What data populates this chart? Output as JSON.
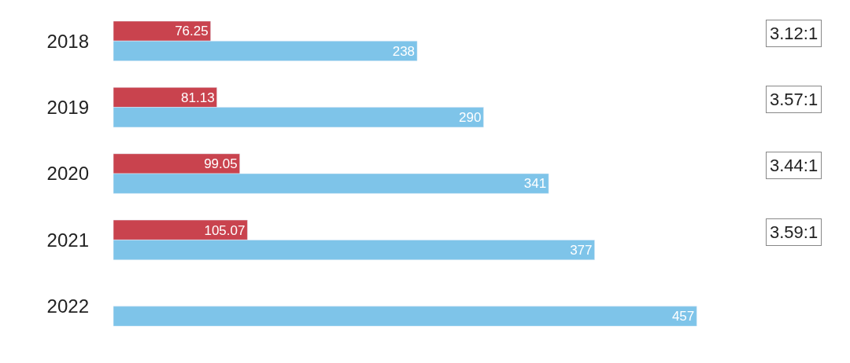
{
  "chart_data": {
    "type": "bar",
    "orientation": "horizontal",
    "categories": [
      "2018",
      "2019",
      "2020",
      "2021",
      "2022"
    ],
    "series": [
      {
        "color": "#c9434e",
        "values": [
          76.25,
          81.13,
          99.05,
          105.07,
          null
        ]
      },
      {
        "color": "#7ec4e9",
        "values": [
          238,
          290,
          341,
          377,
          457
        ]
      }
    ],
    "data_labels": true,
    "tick_labels": "y",
    "annotations": [
      "3.12:1",
      "3.57:1",
      "3.44:1",
      "3.59:1"
    ]
  }
}
